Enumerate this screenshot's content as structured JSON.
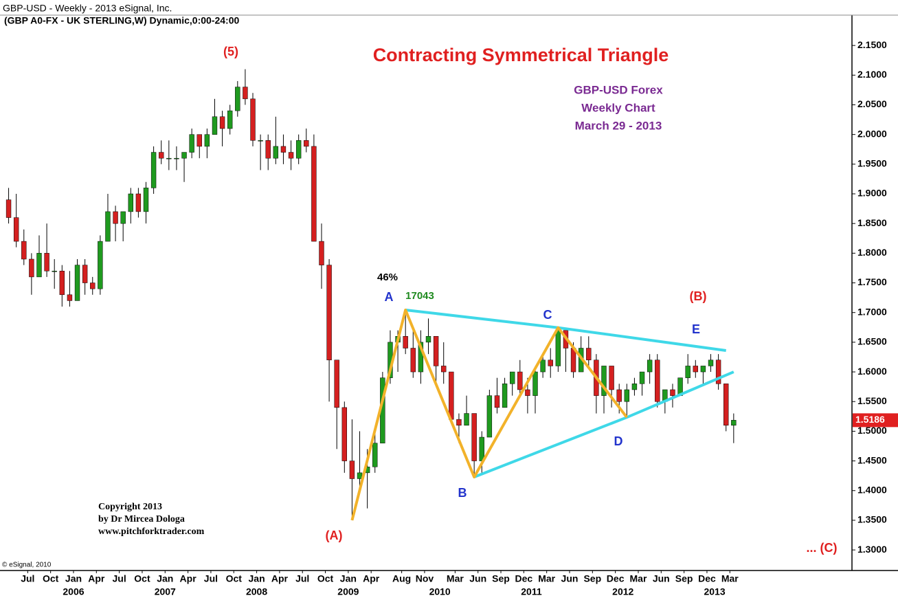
{
  "header": {
    "line1": "GBP-USD -  Weekly - 2013 eSignal, Inc.",
    "line2": "(GBP A0-FX - UK STERLING,W) Dynamic,0:00-24:00"
  },
  "chart_data": {
    "type": "candlestick",
    "title": "Contracting Symmetrical Triangle",
    "subtitle": [
      "GBP-USD Forex",
      "Weekly Chart",
      "March 29 - 2013"
    ],
    "annotations": {
      "wave5": "(5)",
      "waveA": "(A)",
      "waveB": "(B)",
      "waveC": "... (C)",
      "a": "A",
      "b": "B",
      "c": "C",
      "d": "D",
      "e": "E",
      "pct": "46%",
      "pips": "17043"
    },
    "copyright": [
      "Copyright 2013",
      "by Dr Mircea Dologa",
      "www.pitchforktrader.com"
    ],
    "source": "© eSignal, 2010",
    "up_color": "#1f9a1f",
    "down_color": "#d42020",
    "x": [
      "2005-04",
      "2005-05",
      "2005-06",
      "2005-07",
      "2005-08",
      "2005-09",
      "2005-10",
      "2005-11",
      "2005-12",
      "2006-01",
      "2006-02",
      "2006-03",
      "2006-04",
      "2006-05",
      "2006-06",
      "2006-07",
      "2006-08",
      "2006-09",
      "2006-10",
      "2006-11",
      "2006-12",
      "2007-01",
      "2007-02",
      "2007-03",
      "2007-04",
      "2007-05",
      "2007-06",
      "2007-07",
      "2007-08",
      "2007-09",
      "2007-10",
      "2007-11",
      "2007-12",
      "2008-01",
      "2008-02",
      "2008-03",
      "2008-04",
      "2008-05",
      "2008-06",
      "2008-07",
      "2008-08",
      "2008-09",
      "2008-10",
      "2008-11",
      "2008-12",
      "2009-01",
      "2009-02",
      "2009-03",
      "2009-04",
      "2009-05",
      "2009-06",
      "2009-07",
      "2009-08",
      "2009-09",
      "2009-10",
      "2009-11",
      "2009-12",
      "2010-01",
      "2010-02",
      "2010-03",
      "2010-04",
      "2010-05",
      "2010-06",
      "2010-07",
      "2010-08",
      "2010-09",
      "2010-10",
      "2010-11",
      "2010-12",
      "2011-01",
      "2011-02",
      "2011-03",
      "2011-04",
      "2011-05",
      "2011-06",
      "2011-07",
      "2011-08",
      "2011-09",
      "2011-10",
      "2011-11",
      "2011-12",
      "2012-01",
      "2012-02",
      "2012-03",
      "2012-04",
      "2012-05",
      "2012-06",
      "2012-07",
      "2012-08",
      "2012-09",
      "2012-10",
      "2012-11",
      "2012-12",
      "2013-01",
      "2013-02",
      "2013-03"
    ],
    "open": [
      1.89,
      1.86,
      1.82,
      1.79,
      1.76,
      1.8,
      1.77,
      1.77,
      1.73,
      1.72,
      1.78,
      1.75,
      1.74,
      1.82,
      1.87,
      1.85,
      1.87,
      1.9,
      1.87,
      1.91,
      1.97,
      1.96,
      1.96,
      1.96,
      1.97,
      2.0,
      1.98,
      2.0,
      2.03,
      2.01,
      2.04,
      2.08,
      2.06,
      1.99,
      1.99,
      1.96,
      1.98,
      1.97,
      1.96,
      1.99,
      1.98,
      1.82,
      1.78,
      1.62,
      1.54,
      1.45,
      1.42,
      1.43,
      1.44,
      1.48,
      1.59,
      1.65,
      1.66,
      1.64,
      1.6,
      1.65,
      1.66,
      1.61,
      1.6,
      1.52,
      1.51,
      1.53,
      1.45,
      1.49,
      1.56,
      1.54,
      1.58,
      1.6,
      1.57,
      1.56,
      1.6,
      1.62,
      1.61,
      1.67,
      1.64,
      1.6,
      1.64,
      1.62,
      1.56,
      1.61,
      1.57,
      1.55,
      1.57,
      1.58,
      1.6,
      1.62,
      1.55,
      1.57,
      1.56,
      1.59,
      1.61,
      1.6,
      1.61,
      1.62,
      1.58,
      1.51
    ],
    "high": [
      1.91,
      1.9,
      1.84,
      1.8,
      1.83,
      1.85,
      1.79,
      1.78,
      1.77,
      1.79,
      1.79,
      1.76,
      1.83,
      1.9,
      1.88,
      1.87,
      1.91,
      1.91,
      1.92,
      1.98,
      1.99,
      1.99,
      1.98,
      1.97,
      2.01,
      2.0,
      2.01,
      2.06,
      2.04,
      2.05,
      2.09,
      2.11,
      2.07,
      2.0,
      2.0,
      2.03,
      2.0,
      1.99,
      2.0,
      2.01,
      2.0,
      1.85,
      1.79,
      1.62,
      1.55,
      1.52,
      1.5,
      1.47,
      1.5,
      1.6,
      1.67,
      1.67,
      1.7043,
      1.67,
      1.67,
      1.69,
      1.66,
      1.65,
      1.6,
      1.53,
      1.56,
      1.53,
      1.5,
      1.57,
      1.59,
      1.59,
      1.6,
      1.62,
      1.59,
      1.61,
      1.63,
      1.64,
      1.6745,
      1.67,
      1.65,
      1.66,
      1.66,
      1.63,
      1.61,
      1.61,
      1.58,
      1.58,
      1.59,
      1.6,
      1.63,
      1.63,
      1.57,
      1.58,
      1.59,
      1.63,
      1.62,
      1.61,
      1.63,
      1.63,
      1.58,
      1.53
    ],
    "low": [
      1.85,
      1.81,
      1.78,
      1.73,
      1.76,
      1.76,
      1.74,
      1.71,
      1.71,
      1.72,
      1.73,
      1.73,
      1.73,
      1.82,
      1.82,
      1.82,
      1.85,
      1.86,
      1.85,
      1.9,
      1.95,
      1.94,
      1.94,
      1.92,
      1.96,
      1.96,
      1.96,
      2.0,
      1.98,
      2.0,
      2.03,
      2.05,
      1.98,
      1.94,
      1.94,
      1.95,
      1.95,
      1.94,
      1.95,
      1.97,
      1.82,
      1.74,
      1.55,
      1.47,
      1.43,
      1.35,
      1.4,
      1.37,
      1.43,
      1.48,
      1.58,
      1.6,
      1.63,
      1.59,
      1.58,
      1.63,
      1.58,
      1.58,
      1.52,
      1.48,
      1.51,
      1.4229,
      1.43,
      1.49,
      1.53,
      1.54,
      1.56,
      1.56,
      1.53,
      1.53,
      1.59,
      1.59,
      1.6,
      1.6,
      1.59,
      1.6,
      1.61,
      1.53,
      1.53,
      1.54,
      1.53,
      1.5234,
      1.56,
      1.56,
      1.58,
      1.54,
      1.53,
      1.54,
      1.56,
      1.58,
      1.59,
      1.58,
      1.6,
      1.57,
      1.5,
      1.48
    ],
    "close": [
      1.86,
      1.82,
      1.79,
      1.76,
      1.8,
      1.77,
      1.77,
      1.73,
      1.72,
      1.78,
      1.75,
      1.74,
      1.82,
      1.87,
      1.85,
      1.87,
      1.9,
      1.87,
      1.91,
      1.97,
      1.96,
      1.96,
      1.96,
      1.97,
      2.0,
      1.98,
      2.0,
      2.03,
      2.01,
      2.04,
      2.08,
      2.06,
      1.99,
      1.99,
      1.96,
      1.98,
      1.97,
      1.96,
      1.99,
      1.98,
      1.82,
      1.78,
      1.62,
      1.54,
      1.45,
      1.42,
      1.43,
      1.44,
      1.48,
      1.59,
      1.65,
      1.66,
      1.64,
      1.6,
      1.65,
      1.66,
      1.61,
      1.6,
      1.52,
      1.51,
      1.53,
      1.45,
      1.49,
      1.56,
      1.54,
      1.58,
      1.6,
      1.57,
      1.56,
      1.6,
      1.62,
      1.61,
      1.67,
      1.64,
      1.6,
      1.64,
      1.62,
      1.56,
      1.61,
      1.57,
      1.55,
      1.57,
      1.58,
      1.6,
      1.62,
      1.55,
      1.57,
      1.56,
      1.59,
      1.61,
      1.6,
      1.61,
      1.62,
      1.58,
      1.51,
      1.5186
    ],
    "overlays": [
      {
        "color": "#3fd8e8",
        "points": [
          [
            "2009-08",
            1.7043
          ],
          [
            "2011-04",
            1.6745
          ],
          [
            "2013-02",
            1.636
          ]
        ]
      },
      {
        "color": "#3fd8e8",
        "points": [
          [
            "2010-05",
            1.4229
          ],
          [
            "2012-01",
            1.5234
          ],
          [
            "2013-03",
            1.6
          ]
        ]
      },
      {
        "color": "#f2b22a",
        "points": [
          [
            "2009-01",
            1.35
          ],
          [
            "2009-08",
            1.7043
          ],
          [
            "2010-05",
            1.4229
          ],
          [
            "2011-04",
            1.6745
          ],
          [
            "2012-01",
            1.5234
          ]
        ]
      }
    ],
    "xlim": [
      "2005-04",
      "2014-07"
    ],
    "ylim": [
      1.27,
      2.19
    ],
    "xticks": [
      {
        "value": "2005-07",
        "label": "Jul"
      },
      {
        "value": "2005-10",
        "label": "Oct"
      },
      {
        "value": "2006-01",
        "label": "Jan"
      },
      {
        "value": "2006-04",
        "label": "Apr"
      },
      {
        "value": "2006-07",
        "label": "Jul"
      },
      {
        "value": "2006-10",
        "label": "Oct"
      },
      {
        "value": "2007-01",
        "label": "Jan"
      },
      {
        "value": "2007-04",
        "label": "Apr"
      },
      {
        "value": "2007-07",
        "label": "Jul"
      },
      {
        "value": "2007-10",
        "label": "Oct"
      },
      {
        "value": "2008-01",
        "label": "Jan"
      },
      {
        "value": "2008-04",
        "label": "Apr"
      },
      {
        "value": "2008-07",
        "label": "Jul"
      },
      {
        "value": "2008-10",
        "label": "Oct"
      },
      {
        "value": "2009-01",
        "label": "Jan"
      },
      {
        "value": "2009-04",
        "label": "Apr"
      },
      {
        "value": "2009-08",
        "label": "Aug"
      },
      {
        "value": "2009-11",
        "label": "Nov"
      },
      {
        "value": "2010-03",
        "label": "Mar"
      },
      {
        "value": "2010-06",
        "label": "Jun"
      },
      {
        "value": "2010-09",
        "label": "Sep"
      },
      {
        "value": "2010-12",
        "label": "Dec"
      },
      {
        "value": "2011-03",
        "label": "Mar"
      },
      {
        "value": "2011-06",
        "label": "Jun"
      },
      {
        "value": "2011-09",
        "label": "Sep"
      },
      {
        "value": "2011-12",
        "label": "Dec"
      },
      {
        "value": "2012-03",
        "label": "Mar"
      },
      {
        "value": "2012-06",
        "label": "Jun"
      },
      {
        "value": "2012-09",
        "label": "Sep"
      },
      {
        "value": "2012-12",
        "label": "Dec"
      },
      {
        "value": "2013-03",
        "label": "Mar"
      }
    ],
    "year_ticks": [
      {
        "value": "2006-01",
        "label": "2006"
      },
      {
        "value": "2007-01",
        "label": "2007"
      },
      {
        "value": "2008-01",
        "label": "2008"
      },
      {
        "value": "2009-01",
        "label": "2009"
      },
      {
        "value": "2010-01",
        "label": "2010"
      },
      {
        "value": "2011-01",
        "label": "2011"
      },
      {
        "value": "2012-01",
        "label": "2012"
      },
      {
        "value": "2013-01",
        "label": "2013"
      }
    ],
    "yticks": [
      {
        "value": 1.3,
        "label": "1.3000"
      },
      {
        "value": 1.35,
        "label": "1.3500"
      },
      {
        "value": 1.4,
        "label": "1.4000"
      },
      {
        "value": 1.45,
        "label": "1.4500"
      },
      {
        "value": 1.5,
        "label": "1.5000"
      },
      {
        "value": 1.55,
        "label": "1.5500"
      },
      {
        "value": 1.6,
        "label": "1.6000"
      },
      {
        "value": 1.65,
        "label": "1.6500"
      },
      {
        "value": 1.7,
        "label": "1.7000"
      },
      {
        "value": 1.75,
        "label": "1.7500"
      },
      {
        "value": 1.8,
        "label": "1.8000"
      },
      {
        "value": 1.85,
        "label": "1.8500"
      },
      {
        "value": 1.9,
        "label": "1.9000"
      },
      {
        "value": 1.95,
        "label": "1.9500"
      },
      {
        "value": 2.0,
        "label": "2.0000"
      },
      {
        "value": 2.05,
        "label": "2.0500"
      },
      {
        "value": 2.1,
        "label": "2.1000"
      },
      {
        "value": 2.15,
        "label": "2.1500"
      }
    ]
  }
}
